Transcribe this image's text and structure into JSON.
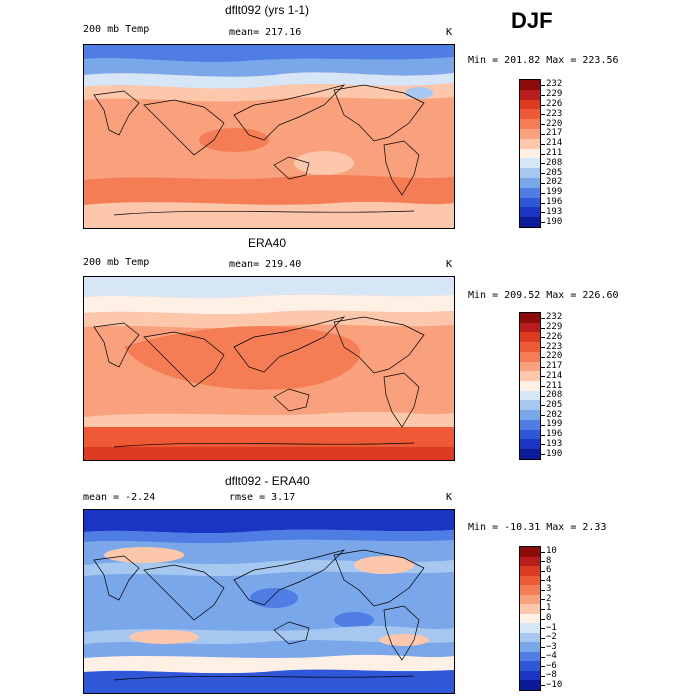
{
  "season": "DJF",
  "panels": [
    {
      "title": "dflt092 (yrs 1-1)",
      "left_label": "200 mb Temp",
      "center_label": "mean= 217.16",
      "units": "K",
      "minmax": "Min = 201.82 Max = 223.56",
      "levels": [
        "232",
        "229",
        "226",
        "223",
        "220",
        "217",
        "214",
        "211",
        "208",
        "205",
        "202",
        "199",
        "196",
        "193",
        "190"
      ],
      "colors": [
        "#8b0a0a",
        "#b81d1d",
        "#dc3b22",
        "#ee5a36",
        "#f57d55",
        "#f9a07c",
        "#fcc7ab",
        "#fff0e6",
        "#d6e6f7",
        "#a6c8f0",
        "#7aa6ea",
        "#4f7de4",
        "#2f57d8",
        "#1a34c4",
        "#0a1a98"
      ]
    },
    {
      "title": "ERA40",
      "left_label": "200 mb Temp",
      "center_label": "mean= 219.40",
      "units": "K",
      "minmax": "Min = 209.52 Max = 226.60",
      "levels": [
        "232",
        "229",
        "226",
        "223",
        "220",
        "217",
        "214",
        "211",
        "208",
        "205",
        "202",
        "199",
        "196",
        "193",
        "190"
      ],
      "colors": [
        "#8b0a0a",
        "#b81d1d",
        "#dc3b22",
        "#ee5a36",
        "#f57d55",
        "#f9a07c",
        "#fcc7ab",
        "#fff0e6",
        "#d6e6f7",
        "#a6c8f0",
        "#7aa6ea",
        "#4f7de4",
        "#2f57d8",
        "#1a34c4",
        "#0a1a98"
      ]
    },
    {
      "title": "dflt092 - ERA40",
      "left_label": "mean =   -2.24",
      "center_label": "rmse =    3.17",
      "units": "K",
      "minmax": "Min = -10.31 Max =   2.33",
      "levels": [
        "10",
        "8",
        "6",
        "4",
        "3",
        "2",
        "1",
        "0",
        "−1",
        "−2",
        "−3",
        "−4",
        "−6",
        "−8",
        "−10"
      ],
      "colors": [
        "#8b0a0a",
        "#b81d1d",
        "#dc3b22",
        "#ee5a36",
        "#f57d55",
        "#f9a07c",
        "#fcc7ab",
        "#fff0e6",
        "#d6e6f7",
        "#a6c8f0",
        "#7aa6ea",
        "#4f7de4",
        "#2f57d8",
        "#1a34c4",
        "#0a1a98"
      ]
    }
  ],
  "chart_data": [
    {
      "type": "heatmap",
      "title": "dflt092 (yrs 1-1)",
      "variable": "200 mb Temp",
      "units": "K",
      "mean": 217.16,
      "min": 201.82,
      "max": 223.56,
      "contour_levels": [
        190,
        193,
        196,
        199,
        202,
        205,
        208,
        211,
        214,
        217,
        220,
        223,
        226,
        229,
        232
      ]
    },
    {
      "type": "heatmap",
      "title": "ERA40",
      "variable": "200 mb Temp",
      "units": "K",
      "mean": 219.4,
      "min": 209.52,
      "max": 226.6,
      "contour_levels": [
        190,
        193,
        196,
        199,
        202,
        205,
        208,
        211,
        214,
        217,
        220,
        223,
        226,
        229,
        232
      ]
    },
    {
      "type": "heatmap",
      "title": "dflt092 - ERA40",
      "units": "K",
      "mean": -2.24,
      "rmse": 3.17,
      "min": -10.31,
      "max": 2.33,
      "contour_levels": [
        -10,
        -8,
        -6,
        -4,
        -3,
        -2,
        -1,
        0,
        1,
        2,
        3,
        4,
        6,
        8,
        10
      ]
    }
  ]
}
